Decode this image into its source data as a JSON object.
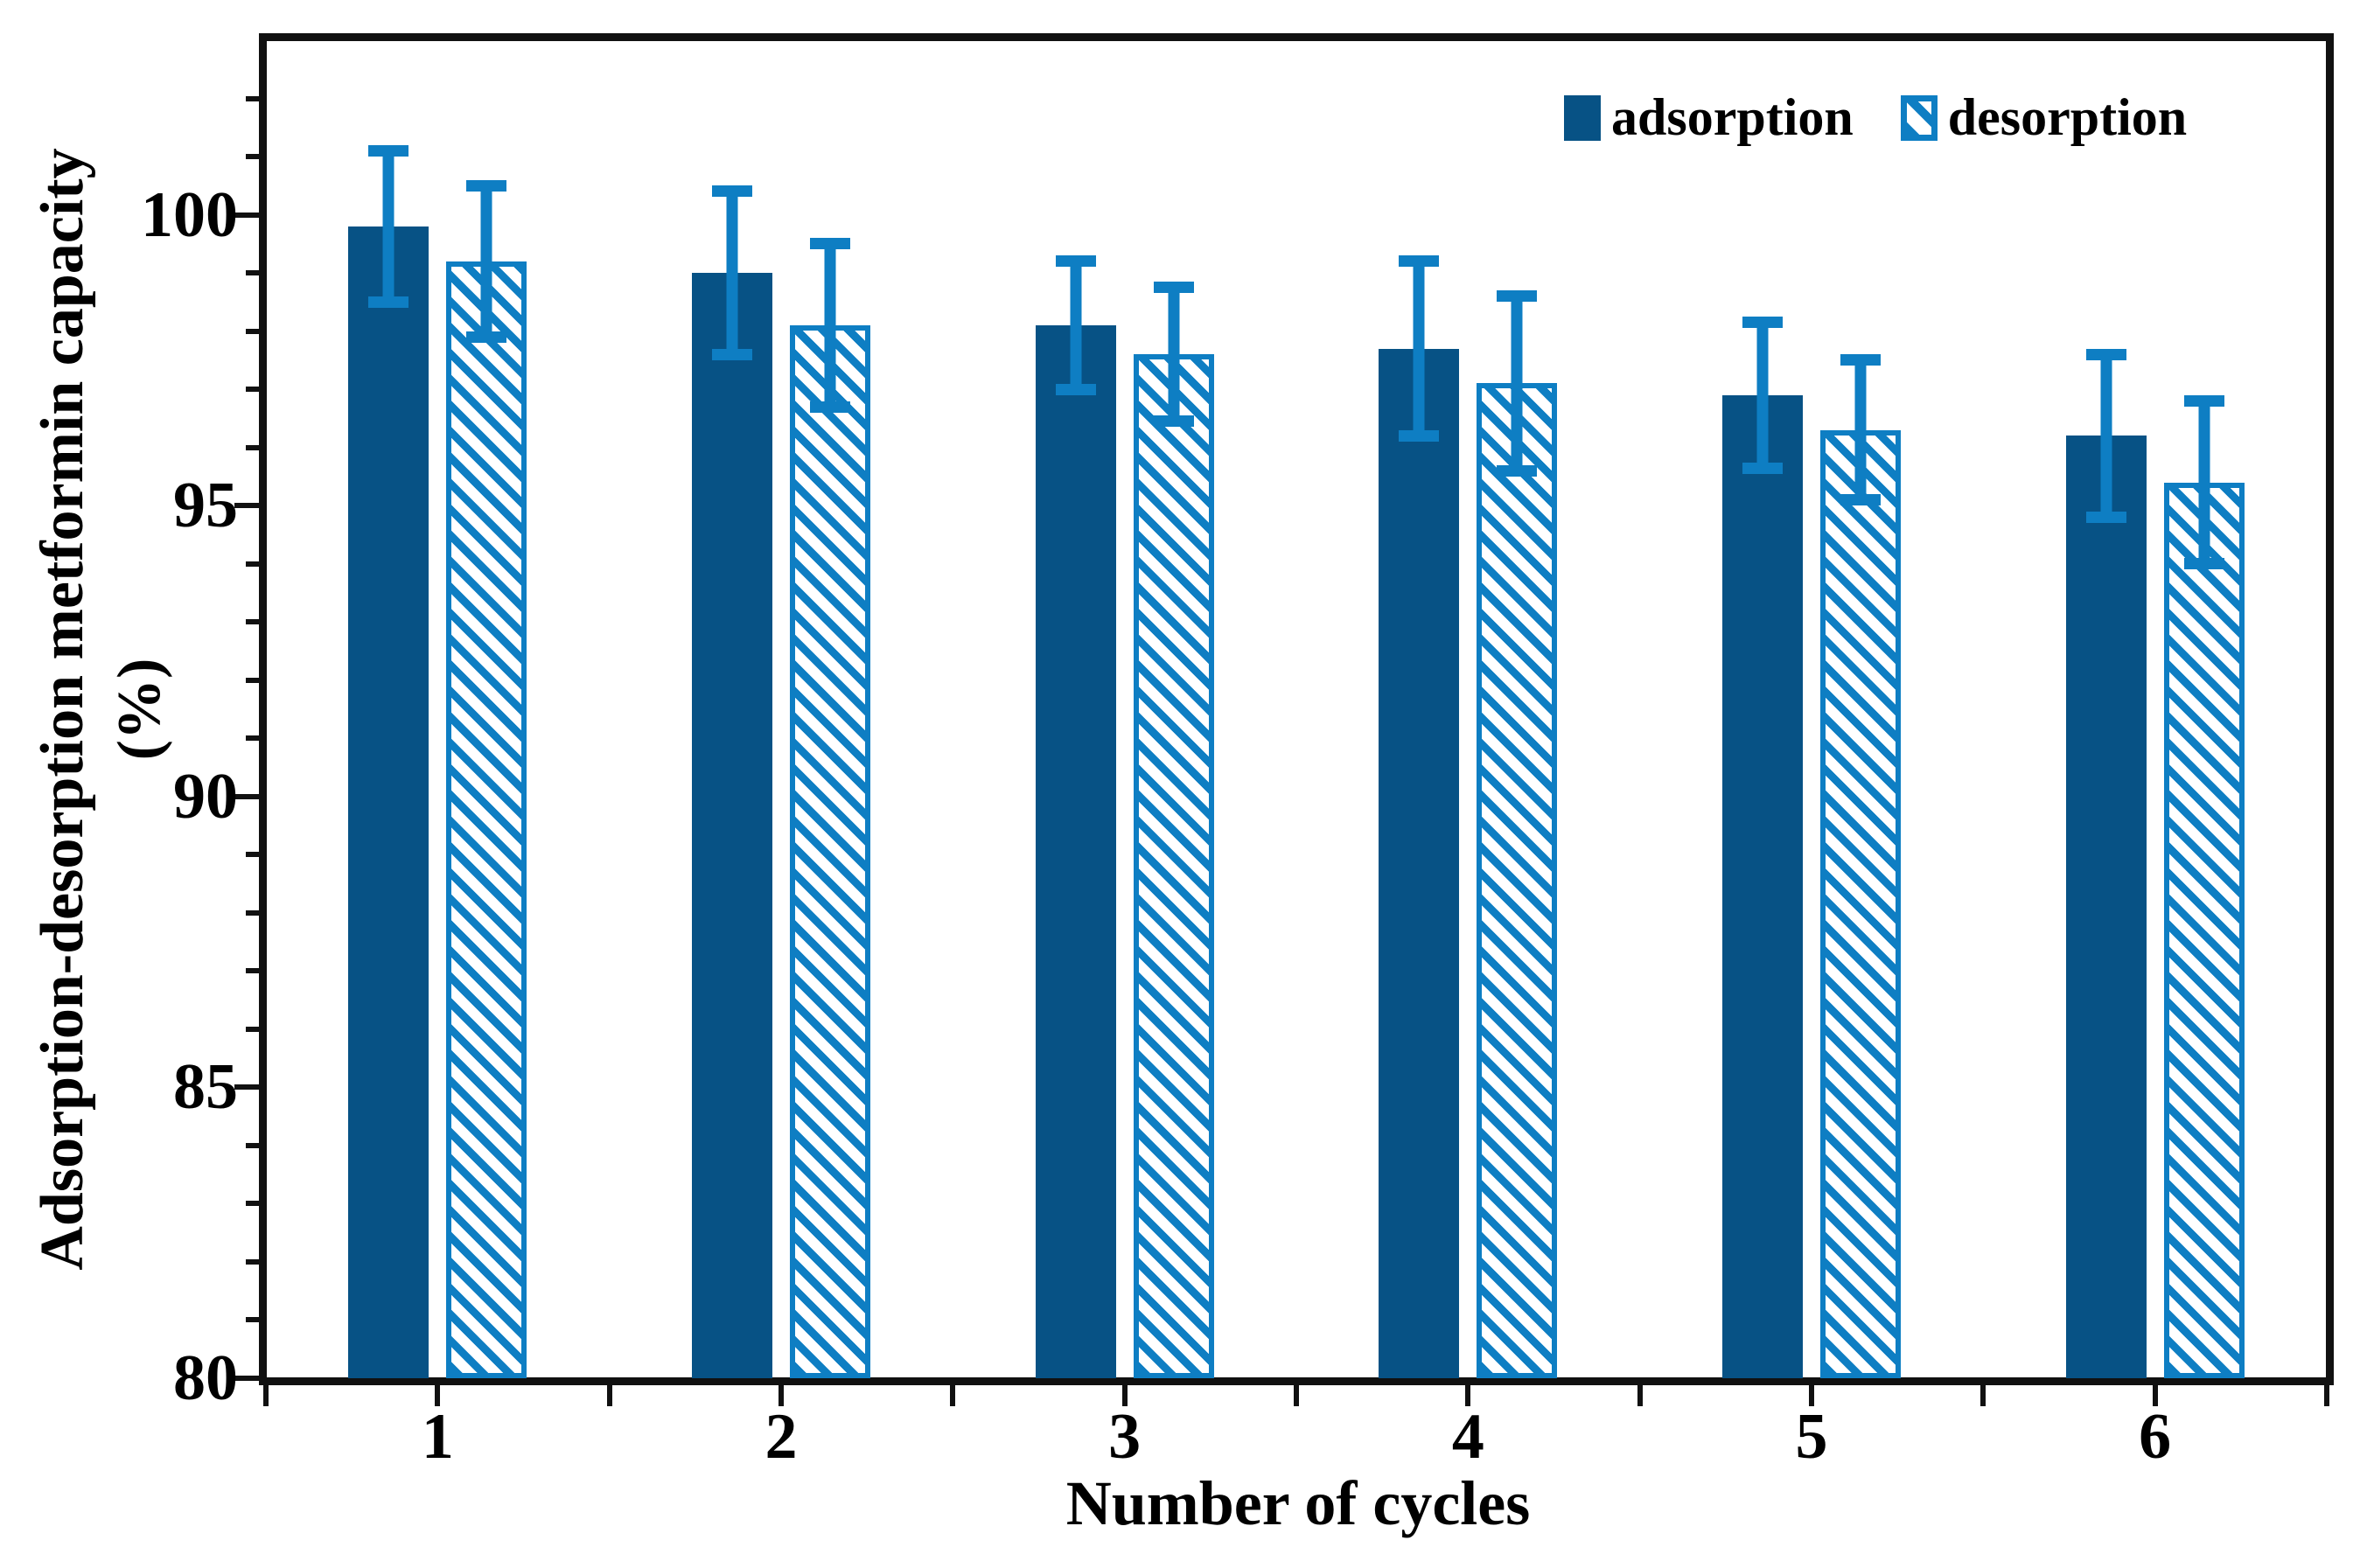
{
  "chart_data": {
    "type": "bar",
    "title": "",
    "xlabel": "Number of cycles",
    "ylabel": "Adsorption-desorption metformin capacity",
    "ylabel_units_line": "(%)",
    "categories": [
      "1",
      "2",
      "3",
      "4",
      "5",
      "6"
    ],
    "series": [
      {
        "name": "adsorption",
        "style": "solid",
        "color": "#075285",
        "values": [
          99.8,
          99.0,
          98.1,
          97.7,
          96.9,
          96.2
        ],
        "errors": [
          1.4,
          1.5,
          1.2,
          1.6,
          1.35,
          1.5
        ]
      },
      {
        "name": "desorption",
        "style": "hatched",
        "color": "#0e7ec3",
        "values": [
          99.2,
          98.1,
          97.6,
          97.1,
          96.3,
          95.4
        ],
        "errors": [
          1.4,
          1.5,
          1.25,
          1.6,
          1.3,
          1.5
        ]
      }
    ],
    "ylim": [
      80,
      103
    ],
    "yticks_major": [
      80,
      85,
      90,
      95,
      100
    ],
    "ytick_labels": [
      "80",
      "85",
      "90",
      "95",
      "100"
    ],
    "minor_tick_step": 1,
    "grid": false,
    "legend_position": "top-right",
    "error_bar_color": "#0e7ec3",
    "axis_color": "#111111"
  },
  "legend": {
    "adsorption_label": "adsorption",
    "desorption_label": "desorption"
  }
}
